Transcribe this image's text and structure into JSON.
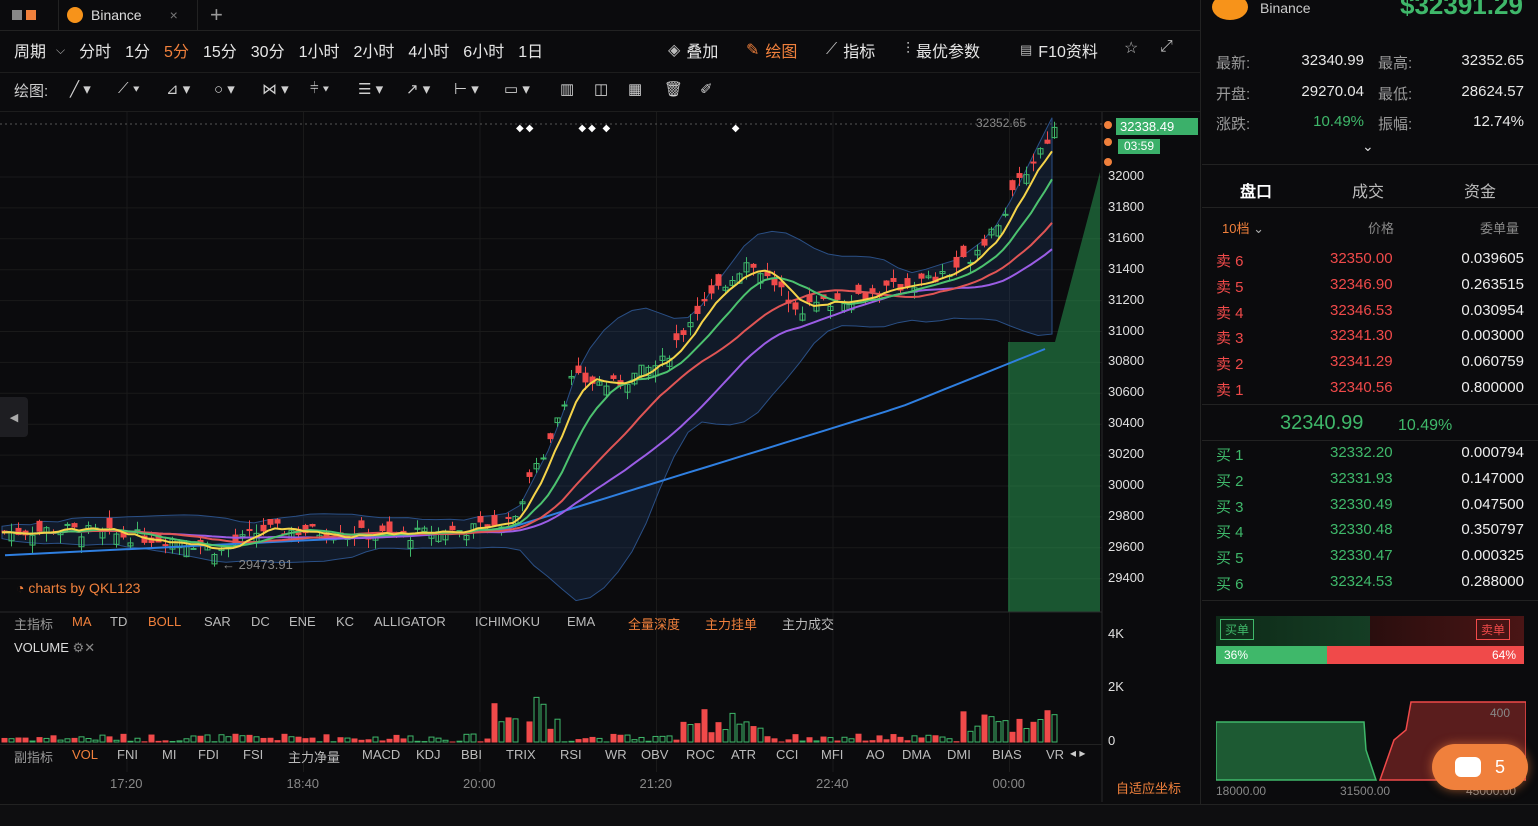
{
  "top_tabs": {
    "exchange": "Binance",
    "add": "+"
  },
  "header_right": {
    "exchange": "Binance",
    "price": "$32391.29"
  },
  "periods": {
    "label": "周期",
    "items": [
      "分时",
      "1分",
      "5分",
      "15分",
      "30分",
      "1小时",
      "2小时",
      "4小时",
      "6小时",
      "1日"
    ],
    "active": "5分"
  },
  "tools": {
    "overlay": "叠加",
    "draw": "绘图",
    "indicator": "指标",
    "best": "最优参数",
    "f10": "F10资料"
  },
  "draw_label": "绘图:",
  "chart": {
    "high_label": "32352.65",
    "low_label": "← 29473.91",
    "current_price": "32338.49",
    "countdown": "03:59",
    "watermark": "charts by QKL123",
    "y_ticks": [
      "32000",
      "31800",
      "31600",
      "31400",
      "31200",
      "31000",
      "30800",
      "30600",
      "30400",
      "30200",
      "30000",
      "29800",
      "29600",
      "29400"
    ],
    "x_ticks": [
      "17:20",
      "18:40",
      "20:00",
      "21:20",
      "22:40",
      "00:00"
    ],
    "vol_ticks": [
      "4K",
      "2K",
      "0"
    ],
    "adapt": "自适应坐标"
  },
  "main_ind": {
    "label": "主指标",
    "items": [
      "MA",
      "TD",
      "BOLL",
      "SAR",
      "DC",
      "ENE",
      "KC",
      "ALLIGATOR",
      "ICHIMOKU",
      "EMA"
    ],
    "extras": [
      "全量深度",
      "主力挂单",
      "主力成交"
    ]
  },
  "sub_ind": {
    "label": "副指标",
    "items": [
      "VOL",
      "FNI",
      "MI",
      "FDI",
      "FSI",
      "主力净量",
      "MACD",
      "KDJ",
      "BBI",
      "TRIX",
      "RSI",
      "WR",
      "OBV",
      "ROC",
      "ATR",
      "CCI",
      "MFI",
      "AO",
      "DMA",
      "DMI",
      "BIAS",
      "VR"
    ]
  },
  "volume_title": "VOLUME",
  "stats": {
    "latest_l": "最新:",
    "latest": "32340.99",
    "high_l": "最高:",
    "high": "32352.65",
    "open_l": "开盘:",
    "open": "29270.04",
    "low_l": "最低:",
    "low": "28624.57",
    "chg_l": "涨跌:",
    "chg": "10.49%",
    "amp_l": "振幅:",
    "amp": "12.74%"
  },
  "rtabs": [
    "盘口",
    "成交",
    "资金"
  ],
  "ob_header": {
    "depth": "10档",
    "price": "价格",
    "qty": "委单量"
  },
  "asks": [
    [
      "卖 6",
      "32350.00",
      "0.039605"
    ],
    [
      "卖 5",
      "32346.90",
      "0.263515"
    ],
    [
      "卖 4",
      "32346.53",
      "0.030954"
    ],
    [
      "卖 3",
      "32341.30",
      "0.003000"
    ],
    [
      "卖 2",
      "32341.29",
      "0.060759"
    ],
    [
      "卖 1",
      "32340.56",
      "0.800000"
    ]
  ],
  "mid": {
    "price": "32340.99",
    "pct": "10.49%"
  },
  "bids": [
    [
      "买 1",
      "32332.20",
      "0.000794"
    ],
    [
      "买 2",
      "32331.93",
      "0.147000"
    ],
    [
      "买 3",
      "32330.49",
      "0.047500"
    ],
    [
      "买 4",
      "32330.48",
      "0.350797"
    ],
    [
      "买 5",
      "32330.47",
      "0.000325"
    ],
    [
      "买 6",
      "32324.53",
      "0.288000"
    ]
  ],
  "ratio": {
    "buy_label": "买单",
    "sell_label": "卖单",
    "buy": "36%",
    "sell": "64%"
  },
  "depth": {
    "y1": "400",
    "x": [
      "18000.00",
      "31500.00",
      "45000.00"
    ]
  },
  "chat": {
    "count": "5"
  },
  "colors": {
    "up": "#3fb86a",
    "down": "#f04a4a",
    "accent": "#f0803c",
    "ma5": "#f5d44a",
    "ma10": "#4cc26f",
    "ma20": "#e05555",
    "ma30": "#9b5de5",
    "ma60": "#2f7fe0"
  }
}
